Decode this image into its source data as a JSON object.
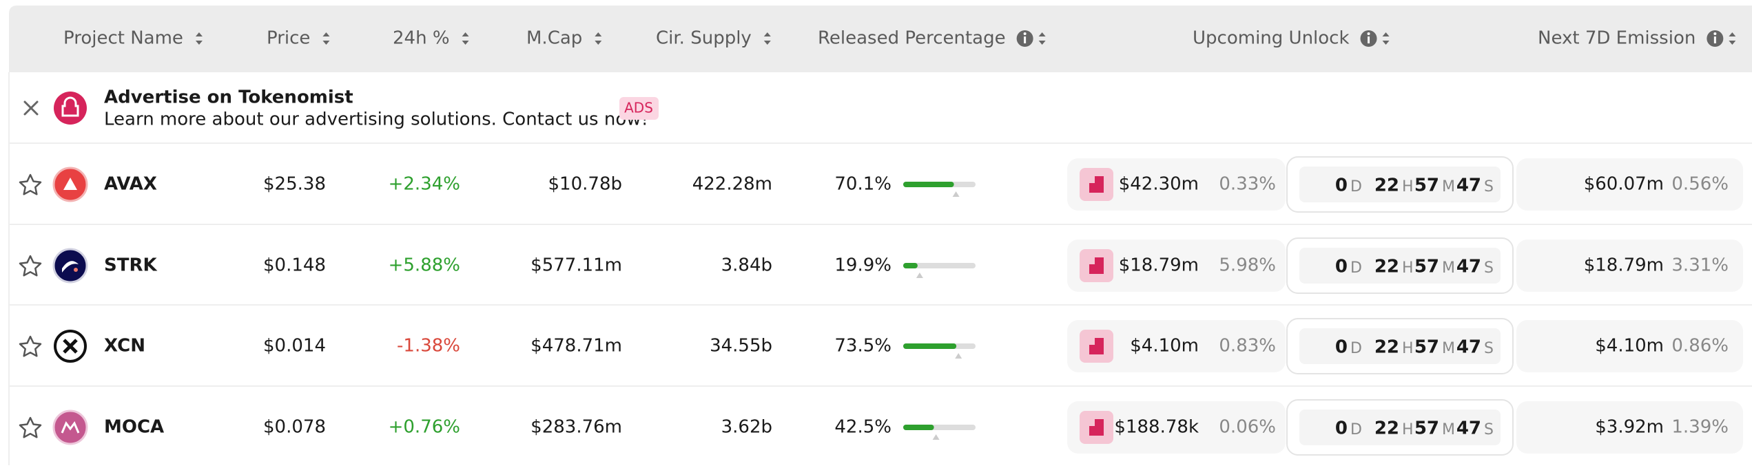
{
  "header": {
    "columns": [
      "Project Name",
      "Price",
      "24h %",
      "M.Cap",
      "Cir. Supply",
      "Released Percentage",
      "Upcoming Unlock",
      "Next 7D Emission"
    ]
  },
  "ad": {
    "title": "Advertise on Tokenomist",
    "text": "Learn more about our advertising solutions. Contact us now!",
    "badge": "ADS"
  },
  "countdown_units": [
    "D",
    "H",
    "M",
    "S"
  ],
  "rows": [
    {
      "name": "AVAX",
      "price": "$25.38",
      "change": "+2.34%",
      "market_cap": "$10.78b",
      "supply": "422.28m",
      "released": {
        "value": 70.1,
        "label": "70.1%"
      },
      "unlock_value": "$42.30m",
      "unlock_percent": "0.33%",
      "countdown": [
        "0",
        "22",
        "57",
        "47"
      ],
      "emission_value": "$60.07m",
      "emission_percent": "0.56%"
    },
    {
      "name": "STRK",
      "price": "$0.148",
      "change": "+5.88%",
      "market_cap": "$577.11m",
      "supply": "3.84b",
      "released": {
        "value": 19.9,
        "label": "19.9%"
      },
      "unlock_value": "$18.79m",
      "unlock_percent": "5.98%",
      "countdown": [
        "0",
        "22",
        "57",
        "47"
      ],
      "emission_value": "$18.79m",
      "emission_percent": "3.31%"
    },
    {
      "name": "XCN",
      "price": "$0.014",
      "change": "-1.38%",
      "market_cap": "$478.71m",
      "supply": "34.55b",
      "released": {
        "value": 73.5,
        "label": "73.5%"
      },
      "unlock_value": "$4.10m",
      "unlock_percent": "0.83%",
      "countdown": [
        "0",
        "22",
        "57",
        "47"
      ],
      "emission_value": "$4.10m",
      "emission_percent": "0.86%"
    },
    {
      "name": "MOCA",
      "price": "$0.078",
      "change": "+0.76%",
      "market_cap": "$283.76m",
      "supply": "3.62b",
      "released": {
        "value": 42.5,
        "label": "42.5%"
      },
      "unlock_value": "$188.78k",
      "unlock_percent": "0.06%",
      "countdown": [
        "0",
        "22",
        "57",
        "47"
      ],
      "emission_value": "$3.92m",
      "emission_percent": "1.39%"
    }
  ]
}
